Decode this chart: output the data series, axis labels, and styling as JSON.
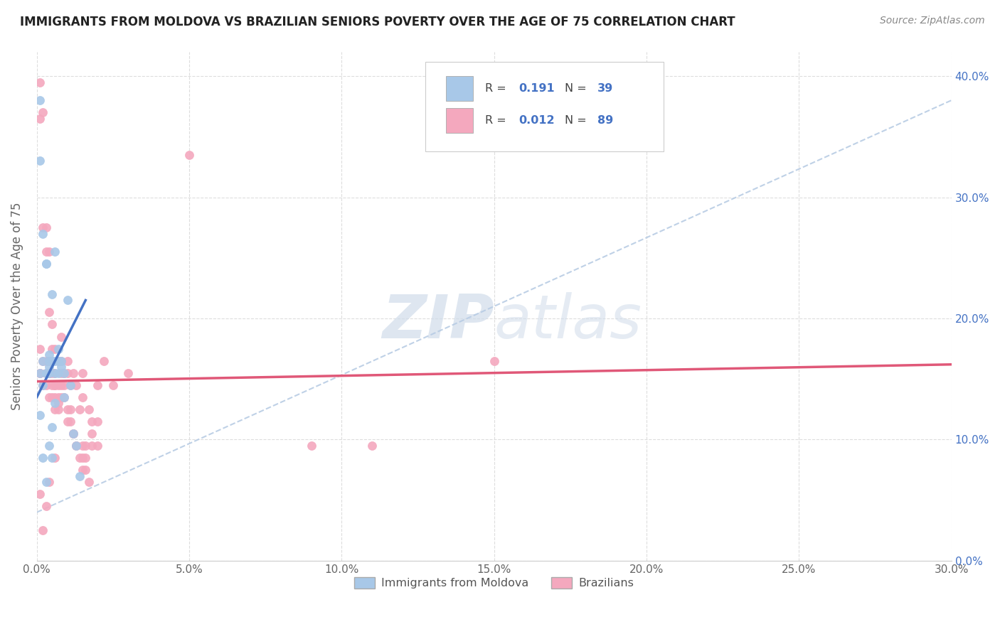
{
  "title": "IMMIGRANTS FROM MOLDOVA VS BRAZILIAN SENIORS POVERTY OVER THE AGE OF 75 CORRELATION CHART",
  "source": "Source: ZipAtlas.com",
  "ylabel": "Seniors Poverty Over the Age of 75",
  "xlim": [
    0.0,
    0.3
  ],
  "ylim": [
    0.0,
    0.42
  ],
  "r_moldova": 0.191,
  "n_moldova": 39,
  "r_brazil": 0.012,
  "n_brazil": 89,
  "moldova_color": "#a8c8e8",
  "brazil_color": "#f4a8be",
  "moldova_line_color": "#4472c4",
  "brazil_line_color": "#e05878",
  "dashed_line_color": "#b8cce4",
  "watermark_color": "#d0dcea",
  "moldova_x": [
    0.001,
    0.001,
    0.002,
    0.003,
    0.003,
    0.004,
    0.004,
    0.005,
    0.005,
    0.006,
    0.006,
    0.007,
    0.007,
    0.008,
    0.009,
    0.01,
    0.011,
    0.012,
    0.013,
    0.014,
    0.002,
    0.003,
    0.004,
    0.005,
    0.006,
    0.007,
    0.008,
    0.009,
    0.001,
    0.002,
    0.003,
    0.004,
    0.005,
    0.006,
    0.001,
    0.002,
    0.003,
    0.004,
    0.005
  ],
  "moldova_y": [
    0.38,
    0.33,
    0.27,
    0.245,
    0.245,
    0.17,
    0.16,
    0.22,
    0.165,
    0.255,
    0.165,
    0.165,
    0.155,
    0.16,
    0.155,
    0.215,
    0.145,
    0.105,
    0.095,
    0.07,
    0.165,
    0.155,
    0.165,
    0.165,
    0.155,
    0.175,
    0.165,
    0.135,
    0.12,
    0.085,
    0.065,
    0.095,
    0.11,
    0.13,
    0.155,
    0.145,
    0.155,
    0.155,
    0.085
  ],
  "brazil_x": [
    0.001,
    0.001,
    0.002,
    0.002,
    0.003,
    0.003,
    0.004,
    0.004,
    0.005,
    0.005,
    0.005,
    0.006,
    0.006,
    0.007,
    0.007,
    0.008,
    0.008,
    0.009,
    0.01,
    0.01,
    0.011,
    0.012,
    0.013,
    0.014,
    0.015,
    0.016,
    0.017,
    0.018,
    0.02,
    0.022,
    0.001,
    0.002,
    0.003,
    0.003,
    0.004,
    0.004,
    0.005,
    0.005,
    0.006,
    0.006,
    0.007,
    0.008,
    0.008,
    0.009,
    0.01,
    0.011,
    0.012,
    0.013,
    0.014,
    0.015,
    0.015,
    0.016,
    0.017,
    0.02,
    0.001,
    0.001,
    0.002,
    0.003,
    0.003,
    0.004,
    0.004,
    0.005,
    0.006,
    0.006,
    0.007,
    0.008,
    0.009,
    0.01,
    0.011,
    0.012,
    0.013,
    0.015,
    0.016,
    0.018,
    0.05,
    0.015,
    0.018,
    0.001,
    0.006,
    0.03,
    0.09,
    0.11,
    0.15,
    0.02,
    0.025,
    0.007,
    0.003,
    0.004,
    0.002
  ],
  "brazil_y": [
    0.395,
    0.365,
    0.275,
    0.37,
    0.275,
    0.255,
    0.255,
    0.205,
    0.175,
    0.195,
    0.165,
    0.175,
    0.155,
    0.165,
    0.145,
    0.185,
    0.165,
    0.155,
    0.155,
    0.165,
    0.145,
    0.155,
    0.145,
    0.125,
    0.135,
    0.095,
    0.125,
    0.105,
    0.145,
    0.165,
    0.155,
    0.145,
    0.155,
    0.165,
    0.155,
    0.135,
    0.145,
    0.135,
    0.125,
    0.145,
    0.135,
    0.155,
    0.145,
    0.135,
    0.125,
    0.115,
    0.105,
    0.095,
    0.085,
    0.095,
    0.075,
    0.085,
    0.065,
    0.095,
    0.155,
    0.175,
    0.165,
    0.155,
    0.145,
    0.165,
    0.155,
    0.155,
    0.145,
    0.135,
    0.125,
    0.135,
    0.145,
    0.115,
    0.125,
    0.105,
    0.095,
    0.085,
    0.075,
    0.095,
    0.335,
    0.155,
    0.115,
    0.055,
    0.085,
    0.155,
    0.095,
    0.095,
    0.165,
    0.115,
    0.145,
    0.13,
    0.045,
    0.065,
    0.025
  ],
  "mol_line": [
    0.0,
    0.016,
    0.135,
    0.215
  ],
  "braz_line": [
    0.0,
    0.3,
    0.148,
    0.162
  ],
  "dash_line": [
    0.0,
    0.3,
    0.04,
    0.38
  ]
}
